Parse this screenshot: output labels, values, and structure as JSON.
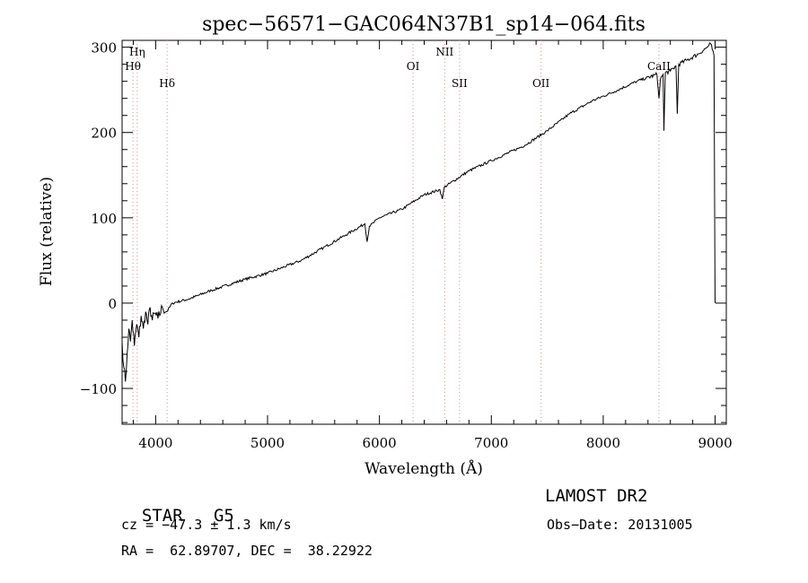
{
  "chart_data": {
    "type": "line",
    "title": "spec−56571−GAC064N37B1_sp14−064.fits",
    "xlabel": "Wavelength (Å)",
    "ylabel": "Flux (relative)",
    "xlim": [
      3700,
      9100
    ],
    "ylim": [
      -142,
      308
    ],
    "x_ticks": [
      4000,
      5000,
      6000,
      7000,
      8000,
      9000
    ],
    "y_ticks": [
      -100,
      0,
      100,
      200,
      300
    ],
    "grid": false,
    "series": [
      {
        "values": [
          {
            "x": 3700,
            "y": -45
          },
          {
            "x": 3715,
            "y": -75
          },
          {
            "x": 3730,
            "y": -92
          },
          {
            "x": 3745,
            "y": -60
          },
          {
            "x": 3760,
            "y": -30
          },
          {
            "x": 3775,
            "y": -45
          },
          {
            "x": 3790,
            "y": -20
          },
          {
            "x": 3810,
            "y": -50
          },
          {
            "x": 3830,
            "y": -25
          },
          {
            "x": 3850,
            "y": -40
          },
          {
            "x": 3870,
            "y": -15
          },
          {
            "x": 3890,
            "y": -30
          },
          {
            "x": 3910,
            "y": -10
          },
          {
            "x": 3930,
            "y": -25
          },
          {
            "x": 3950,
            "y": -5
          },
          {
            "x": 3970,
            "y": -20
          },
          {
            "x": 3990,
            "y": -12
          },
          {
            "x": 4020,
            "y": -18
          },
          {
            "x": 4060,
            "y": -5
          },
          {
            "x": 4100,
            "y": -10
          },
          {
            "x": 4150,
            "y": 0
          },
          {
            "x": 4300,
            "y": 5
          },
          {
            "x": 4500,
            "y": 15
          },
          {
            "x": 4800,
            "y": 28
          },
          {
            "x": 5000,
            "y": 35
          },
          {
            "x": 5300,
            "y": 50
          },
          {
            "x": 5500,
            "y": 65
          },
          {
            "x": 5700,
            "y": 80
          },
          {
            "x": 5870,
            "y": 93
          },
          {
            "x": 5890,
            "y": 72
          },
          {
            "x": 5910,
            "y": 90
          },
          {
            "x": 6000,
            "y": 100
          },
          {
            "x": 6200,
            "y": 110
          },
          {
            "x": 6400,
            "y": 127
          },
          {
            "x": 6540,
            "y": 133
          },
          {
            "x": 6562,
            "y": 122
          },
          {
            "x": 6580,
            "y": 136
          },
          {
            "x": 6800,
            "y": 155
          },
          {
            "x": 7000,
            "y": 167
          },
          {
            "x": 7300,
            "y": 185
          },
          {
            "x": 7500,
            "y": 202
          },
          {
            "x": 7700,
            "y": 222
          },
          {
            "x": 7900,
            "y": 237
          },
          {
            "x": 8100,
            "y": 248
          },
          {
            "x": 8300,
            "y": 260
          },
          {
            "x": 8480,
            "y": 268
          },
          {
            "x": 8498,
            "y": 240
          },
          {
            "x": 8510,
            "y": 262
          },
          {
            "x": 8535,
            "y": 268
          },
          {
            "x": 8542,
            "y": 202
          },
          {
            "x": 8555,
            "y": 270
          },
          {
            "x": 8600,
            "y": 272
          },
          {
            "x": 8650,
            "y": 278
          },
          {
            "x": 8662,
            "y": 222
          },
          {
            "x": 8675,
            "y": 280
          },
          {
            "x": 8750,
            "y": 285
          },
          {
            "x": 8850,
            "y": 292
          },
          {
            "x": 8930,
            "y": 300
          },
          {
            "x": 8960,
            "y": 304
          },
          {
            "x": 8990,
            "y": 290
          },
          {
            "x": 8998,
            "y": 40
          },
          {
            "x": 9000,
            "y": 0
          }
        ]
      }
    ],
    "lines": [
      {
        "label": "Hη",
        "x": 3835,
        "row": 0
      },
      {
        "label": "Hθ",
        "x": 3797,
        "row": 1
      },
      {
        "label": "Hδ",
        "x": 4102,
        "row": 2
      },
      {
        "label": "OI",
        "x": 6300,
        "row": 1
      },
      {
        "label": "NII",
        "x": 6583,
        "row": 0
      },
      {
        "label": "SII",
        "x": 6716,
        "row": 2
      },
      {
        "label": "OII",
        "x": 7444,
        "row": 2
      },
      {
        "label": "CaII",
        "x": 8498,
        "row": 1
      }
    ]
  },
  "info": {
    "type_label": "STAR",
    "subclass": "G5",
    "survey": "LAMOST DR2",
    "cz": "cz = −47.3 ± 1.3 km/s",
    "obs_date": "Obs−Date: 20131005",
    "coords": "RA =  62.89707, DEC =  38.22922"
  }
}
